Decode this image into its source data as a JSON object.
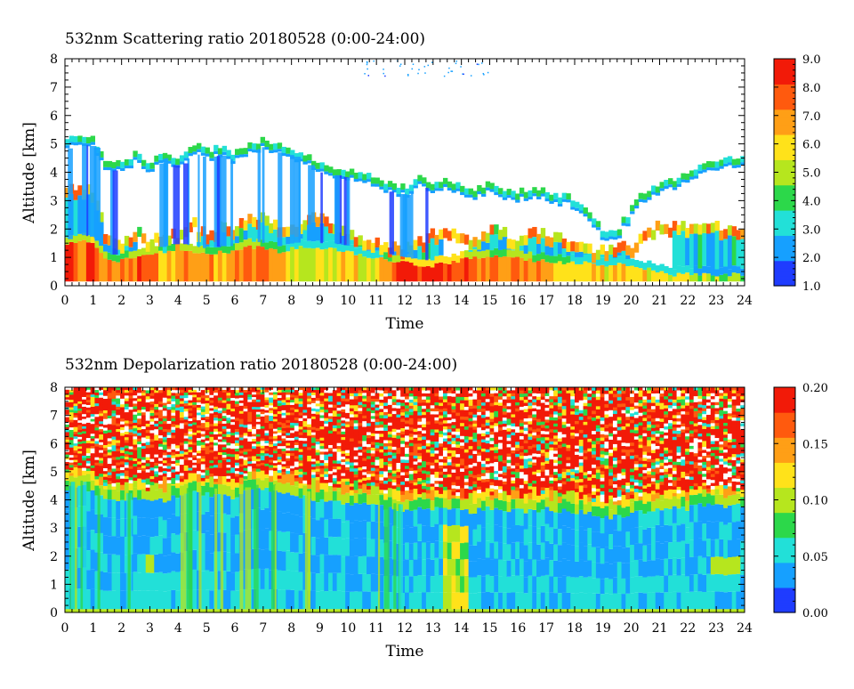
{
  "chart_data": [
    {
      "type": "heatmap",
      "title": "532nm Scattering ratio  20180528 (0:00-24:00)",
      "xlabel": "Time",
      "ylabel": "Altitude [km]",
      "xlim": [
        0,
        24
      ],
      "ylim": [
        0,
        8
      ],
      "x_ticks": [
        "0",
        "1",
        "2",
        "3",
        "4",
        "5",
        "6",
        "7",
        "8",
        "9",
        "10",
        "11",
        "12",
        "13",
        "14",
        "15",
        "16",
        "17",
        "18",
        "19",
        "20",
        "21",
        "22",
        "23",
        "24"
      ],
      "y_ticks": [
        "0",
        "1",
        "2",
        "3",
        "4",
        "5",
        "6",
        "7",
        "8"
      ],
      "colorbar": {
        "range": [
          1.0,
          9.0
        ],
        "tick_labels": [
          "1.0",
          "2.0",
          "3.0",
          "4.0",
          "5.0",
          "6.0",
          "7.0",
          "8.0",
          "9.0"
        ],
        "colors": [
          "#1f3cff",
          "#16a0ff",
          "#22e0d8",
          "#2cd84a",
          "#b6e61e",
          "#ffe21a",
          "#ff9f16",
          "#ff5a0e",
          "#f21a08"
        ]
      },
      "cloud_top_km": [
        5.1,
        5.3,
        5.2,
        4.4,
        4.3,
        4.7,
        4.2,
        4.8,
        4.4,
        5.0,
        4.8,
        4.9,
        4.7,
        5.0,
        5.2,
        5.0,
        4.9,
        4.6,
        4.3,
        4.2,
        4.1,
        4.0,
        3.8,
        3.6,
        3.5,
        3.8,
        3.7,
        3.7,
        3.6,
        3.4,
        3.6,
        3.4,
        3.3,
        3.5,
        3.4,
        3.2,
        3.1,
        2.5,
        2.0,
        2.0,
        2.7,
        3.4,
        3.6,
        3.8,
        4.0,
        4.2,
        4.4,
        4.5,
        4.5
      ],
      "cloud_base_km": [
        3.2,
        3.1,
        3.0,
        1.3,
        1.2,
        1.6,
        1.3,
        1.6,
        1.4,
        2.0,
        1.4,
        1.8,
        1.7,
        2.2,
        2.1,
        1.9,
        1.8,
        2.0,
        2.1,
        1.8,
        1.5,
        1.3,
        1.2,
        1.1,
        1.0,
        1.3,
        1.5,
        1.6,
        1.5,
        1.2,
        1.7,
        1.6,
        1.3,
        1.7,
        1.6,
        1.4,
        1.1,
        1.0,
        1.0,
        1.0,
        1.1,
        1.5,
        1.8,
        1.9,
        1.8,
        1.8,
        1.8,
        1.7,
        1.7
      ],
      "layer_top_km": [
        1.4,
        1.6,
        1.5,
        0.9,
        0.9,
        1.0,
        1.1,
        1.2,
        1.3,
        1.2,
        1.1,
        1.2,
        1.2,
        1.4,
        1.3,
        1.2,
        1.3,
        1.4,
        1.3,
        1.3,
        1.2,
        1.1,
        1.0,
        0.9,
        0.8,
        0.7,
        0.7,
        0.8,
        0.9,
        1.0,
        1.0,
        1.1,
        1.0,
        0.9,
        0.9,
        0.8,
        0.8,
        0.8,
        0.7,
        0.8,
        0.7,
        0.6,
        0.5,
        0.4,
        0.4,
        0.4,
        0.4,
        0.4,
        0.4
      ],
      "layer_value": [
        8,
        7.5,
        8,
        7,
        6.5,
        7.5,
        8,
        6,
        7,
        7.5,
        7,
        6.5,
        7,
        7.5,
        7,
        6.5,
        6,
        5.5,
        5.5,
        5.5,
        6,
        5.5,
        5.5,
        7,
        8.5,
        8.5,
        8,
        8,
        8,
        7.5,
        7,
        7,
        7.5,
        7,
        6.5,
        6.5,
        6,
        6,
        6,
        6,
        6,
        6,
        5.5,
        5.5,
        5.5,
        5,
        5,
        5,
        5
      ]
    },
    {
      "type": "heatmap",
      "title": "532nm Depolarization ratio  20180528 (0:00-24:00)",
      "xlabel": "Time",
      "ylabel": "Altitude [km]",
      "xlim": [
        0,
        24
      ],
      "ylim": [
        0,
        8
      ],
      "x_ticks": [
        "0",
        "1",
        "2",
        "3",
        "4",
        "5",
        "6",
        "7",
        "8",
        "9",
        "10",
        "11",
        "12",
        "13",
        "14",
        "15",
        "16",
        "17",
        "18",
        "19",
        "20",
        "21",
        "22",
        "23",
        "24"
      ],
      "y_ticks": [
        "0",
        "1",
        "2",
        "3",
        "4",
        "5",
        "6",
        "7",
        "8"
      ],
      "colorbar": {
        "range": [
          0.0,
          0.2
        ],
        "tick_labels": [
          "0.00",
          "0.05",
          "0.10",
          "0.15",
          "0.20"
        ],
        "colors": [
          "#1f3cff",
          "#16a0ff",
          "#22e0d8",
          "#2cd84a",
          "#b6e61e",
          "#ffe21a",
          "#ff9f16",
          "#ff5a0e",
          "#f21a08"
        ]
      },
      "noisy_base_km": [
        5.0,
        5.1,
        4.9,
        4.6,
        4.5,
        4.6,
        4.4,
        4.7,
        4.6,
        4.9,
        4.8,
        4.8,
        4.7,
        4.9,
        5.0,
        4.9,
        4.8,
        4.7,
        4.6,
        4.6,
        4.5,
        4.5,
        4.4,
        4.3,
        4.2,
        4.3,
        4.3,
        4.3,
        4.2,
        4.2,
        4.3,
        4.3,
        4.2,
        4.2,
        4.3,
        4.2,
        4.2,
        4.1,
        4.0,
        4.0,
        4.1,
        4.2,
        4.2,
        4.3,
        4.3,
        4.4,
        4.4,
        4.4,
        4.4
      ],
      "boundary_top_km": [
        4.4,
        4.5,
        4.3,
        4.0,
        4.0,
        4.1,
        3.9,
        4.0,
        4.1,
        4.3,
        4.2,
        4.2,
        4.1,
        4.3,
        4.4,
        4.3,
        4.2,
        4.1,
        4.0,
        4.0,
        3.9,
        3.9,
        3.8,
        3.7,
        3.6,
        3.7,
        3.7,
        3.7,
        3.6,
        3.6,
        3.7,
        3.7,
        3.6,
        3.6,
        3.7,
        3.6,
        3.6,
        3.5,
        3.4,
        3.4,
        3.5,
        3.6,
        3.6,
        3.7,
        3.7,
        3.8,
        3.8,
        3.8,
        3.8
      ]
    }
  ]
}
